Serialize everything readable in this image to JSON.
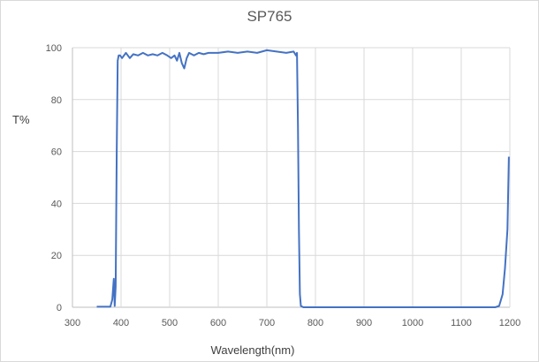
{
  "chart_data": {
    "type": "line",
    "title": "SP765",
    "xlabel": "Wavelength(nm)",
    "ylabel": "T%",
    "xlim": [
      300,
      1200
    ],
    "ylim": [
      0,
      100
    ],
    "x_ticks": [
      300,
      400,
      500,
      600,
      700,
      800,
      900,
      1000,
      1100,
      1200
    ],
    "y_ticks": [
      0,
      20,
      40,
      60,
      80,
      100
    ],
    "grid": {
      "vertical": true,
      "horizontal": true
    },
    "legend": "none",
    "line_color": "#4472c4",
    "series": [
      {
        "name": "T%",
        "x": [
          350,
          378,
          382,
          385,
          387,
          389,
          391,
          393,
          395,
          398,
          402,
          410,
          418,
          425,
          435,
          445,
          455,
          465,
          475,
          485,
          495,
          503,
          510,
          515,
          520,
          525,
          530,
          535,
          540,
          550,
          560,
          570,
          580,
          600,
          620,
          640,
          660,
          680,
          700,
          720,
          740,
          755,
          760,
          762,
          764,
          766,
          768,
          770,
          775,
          800,
          900,
          1000,
          1100,
          1170,
          1178,
          1185,
          1190,
          1195,
          1198
        ],
        "y": [
          0.2,
          0.2,
          3,
          11,
          0.5,
          8,
          60,
          95,
          97,
          97,
          96,
          98,
          96,
          97.5,
          97,
          98,
          97,
          97.5,
          97,
          98,
          97,
          96,
          97,
          95,
          98,
          94,
          92,
          96,
          98,
          97,
          98,
          97.5,
          98,
          98,
          98.5,
          98,
          98.5,
          98,
          99,
          98.5,
          98,
          98.5,
          97,
          98,
          70,
          30,
          5,
          0.5,
          0,
          0,
          0,
          0,
          0,
          0,
          0.5,
          5,
          15,
          30,
          58
        ]
      }
    ]
  }
}
